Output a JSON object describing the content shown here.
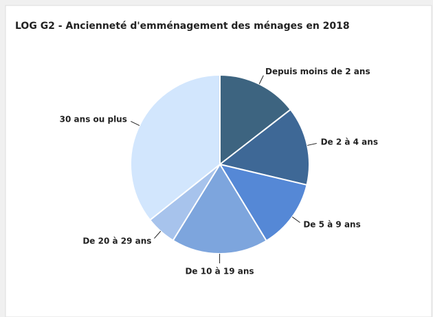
{
  "chart_data": {
    "type": "pie",
    "title": "LOG G2 - Ancienneté d'emménagement des ménages en 2018",
    "categories": [
      "Depuis moins de 2 ans",
      "De 2 à 4 ans",
      "De 5 à 9 ans",
      "De 10 à 19 ans",
      "De 20 à 29 ans",
      "30 ans ou plus"
    ],
    "values": [
      14.5,
      14.2,
      12.6,
      17.5,
      5.5,
      35.7
    ],
    "colors": [
      "#3d6480",
      "#3e6896",
      "#5588d6",
      "#7da5dd",
      "#a7c3ec",
      "#d2e6fd"
    ]
  }
}
